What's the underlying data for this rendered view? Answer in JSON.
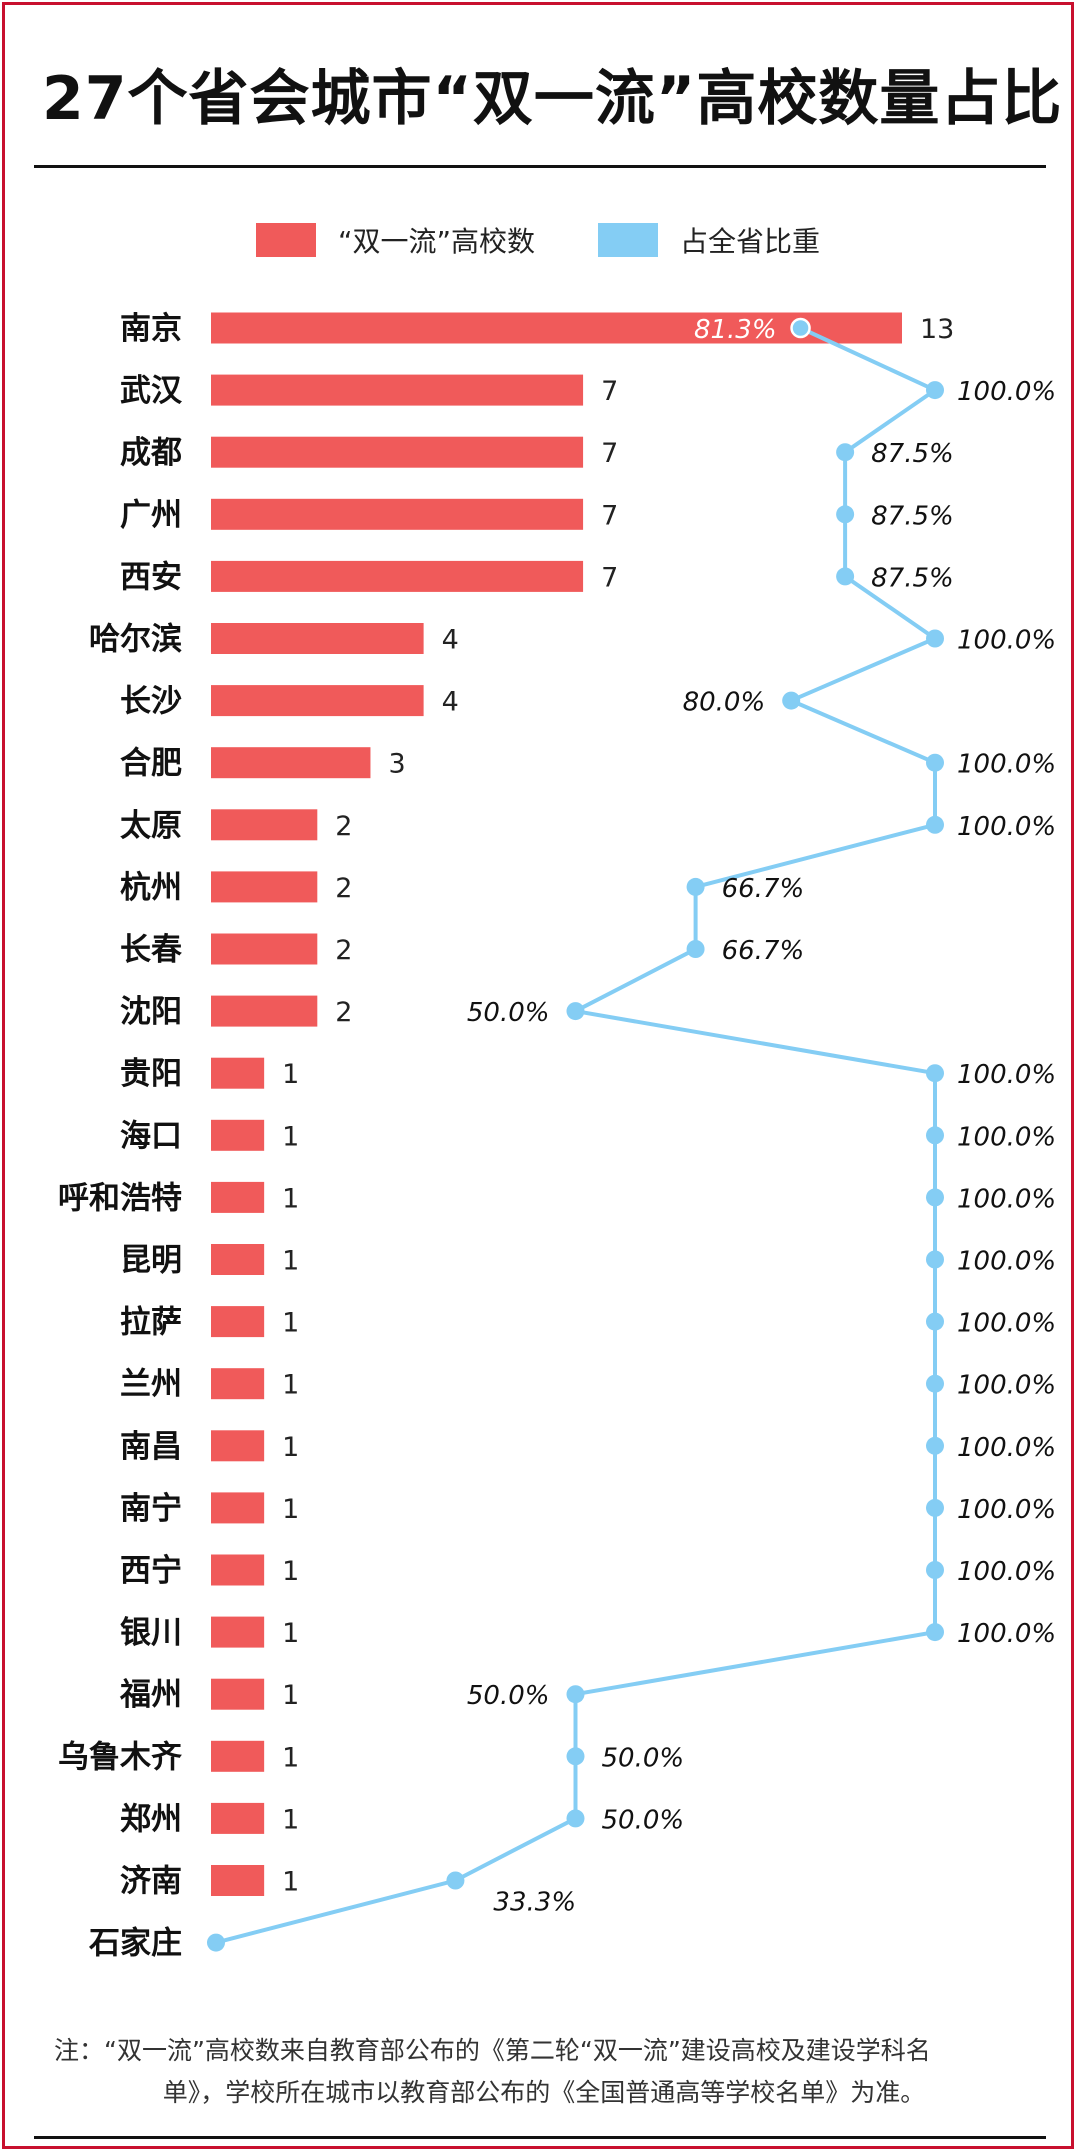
{
  "title": "27个省会城市“双一流”高校数量占比",
  "legend": {
    "bar_label": "“双一流”高校数",
    "line_label": "占全省比重"
  },
  "colors": {
    "bar": "#f05a5a",
    "line": "#84cdf4",
    "frame": "#c8102e"
  },
  "note": {
    "line1": "注：“双一流”高校数来自教育部公布的《第二轮“双一流”建设高校及建设学科名",
    "line2": "单》，学校所在城市以教育部公布的《全国普通高等学校名单》为准。"
  },
  "chart_data": {
    "type": "bar",
    "categories": [
      "南京",
      "武汉",
      "成都",
      "广州",
      "西安",
      "哈尔滨",
      "长沙",
      "合肥",
      "太原",
      "杭州",
      "长春",
      "沈阳",
      "贵阳",
      "海口",
      "呼和浩特",
      "昆明",
      "拉萨",
      "兰州",
      "南昌",
      "南宁",
      "西宁",
      "银川",
      "福州",
      "乌鲁木齐",
      "郑州",
      "济南",
      "石家庄"
    ],
    "series": [
      {
        "name": "“双一流”高校数",
        "type": "bar",
        "values": [
          13,
          7,
          7,
          7,
          7,
          4,
          4,
          3,
          2,
          2,
          2,
          2,
          1,
          1,
          1,
          1,
          1,
          1,
          1,
          1,
          1,
          1,
          1,
          1,
          1,
          1,
          null
        ],
        "labels": [
          "13",
          "7",
          "7",
          "7",
          "7",
          "4",
          "4",
          "3",
          "2",
          "2",
          "2",
          "2",
          "1",
          "1",
          "1",
          "1",
          "1",
          "1",
          "1",
          "1",
          "1",
          "1",
          "1",
          "1",
          "1",
          "1",
          ""
        ]
      },
      {
        "name": "占全省比重",
        "type": "line",
        "values": [
          81.3,
          100.0,
          87.5,
          87.5,
          87.5,
          100.0,
          80.0,
          100.0,
          100.0,
          66.7,
          66.7,
          50.0,
          100.0,
          100.0,
          100.0,
          100.0,
          100.0,
          100.0,
          100.0,
          100.0,
          100.0,
          100.0,
          50.0,
          50.0,
          50.0,
          33.3,
          0
        ],
        "labels": [
          "81.3%",
          "100.0%",
          "87.5%",
          "87.5%",
          "87.5%",
          "100.0%",
          "80.0%",
          "100.0%",
          "100.0%",
          "66.7%",
          "66.7%",
          "50.0%",
          "100.0%",
          "100.0%",
          "100.0%",
          "100.0%",
          "100.0%",
          "100.0%",
          "100.0%",
          "100.0%",
          "100.0%",
          "100.0%",
          "50.0%",
          "50.0%",
          "50.0%",
          "33.3%",
          ""
        ]
      }
    ],
    "bar_xlim": [
      0,
      13
    ],
    "line_xlim": [
      0,
      100
    ],
    "legend_position": "top",
    "grid": false
  }
}
